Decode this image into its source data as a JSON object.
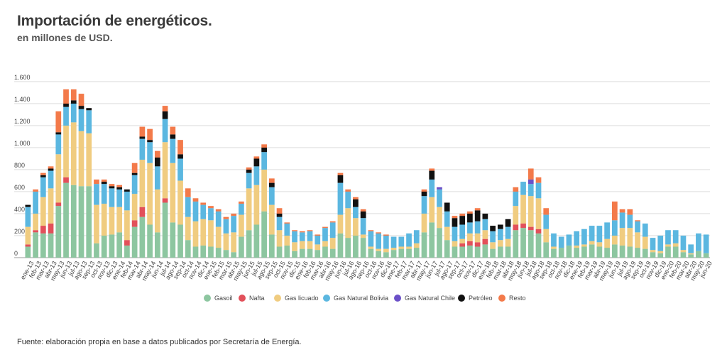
{
  "title": "Importación de energéticos.",
  "subtitle": "en millones de USD.",
  "source": "Fuente: elaboración propia en base a datos publicados por Secretaría de Energía.",
  "chart_data": {
    "type": "bar",
    "stacked": true,
    "title": "Importación de energéticos.",
    "subtitle": "en millones de USD.",
    "ylim": [
      0,
      1600
    ],
    "yticks": [
      0,
      200,
      400,
      600,
      800,
      1000,
      1200,
      1400,
      1600
    ],
    "ytick_labels": [
      "0",
      "200",
      "400",
      "600",
      "800",
      "1.000",
      "1.200",
      "1.400",
      "1.600"
    ],
    "grid": true,
    "legend": "bottom",
    "categories": [
      "ene-13",
      "feb-13",
      "mar-13",
      "abr-13",
      "may-13",
      "jun-13",
      "jul-13",
      "ago-13",
      "sep-13",
      "oct-13",
      "nov-13",
      "dic-13",
      "ene-14",
      "feb-14",
      "mar-14",
      "abr-14",
      "may-14",
      "jun-14",
      "jul-14",
      "ago-14",
      "sep-14",
      "oct-14",
      "nov-14",
      "dic-14",
      "ene-15",
      "feb-15",
      "mar-15",
      "abr-15",
      "may-15",
      "jun-15",
      "jul-15",
      "ago-15",
      "sep-15",
      "oct-15",
      "nov-15",
      "dic-15",
      "ene-16",
      "feb-16",
      "mar-16",
      "abr-16",
      "may-16",
      "jun-16",
      "jul-16",
      "ago-16",
      "sep-16",
      "oct-16",
      "nov-16",
      "dic-16",
      "ene-17",
      "feb-17",
      "mar-17",
      "abr-17",
      "may-17",
      "jun-17",
      "jul-17",
      "ago-17",
      "sep-17",
      "oct-17",
      "nov-17",
      "dic-17",
      "ene-18",
      "feb-18",
      "mar-18",
      "abr-18",
      "may-18",
      "jun-18",
      "jul-18",
      "ago-18",
      "sep-18",
      "oct-18",
      "nov-18",
      "dic-18",
      "ene-19",
      "feb-19",
      "mar-19",
      "abr-19",
      "may-19",
      "jun-19",
      "jul-19",
      "ago-19",
      "sep-19",
      "oct-19",
      "nov-19",
      "dic-19",
      "ene-20",
      "feb-20",
      "mar-20",
      "abr-20",
      "may-20",
      "jun-20"
    ],
    "series": [
      {
        "name": "Gasoil",
        "color": "#8dc6a0",
        "values": [
          100,
          230,
          220,
          220,
          470,
          680,
          660,
          650,
          650,
          130,
          200,
          210,
          230,
          110,
          280,
          370,
          300,
          230,
          500,
          320,
          300,
          160,
          100,
          110,
          100,
          90,
          70,
          50,
          190,
          250,
          300,
          420,
          210,
          100,
          110,
          60,
          80,
          80,
          70,
          100,
          80,
          220,
          180,
          200,
          180,
          80,
          60,
          50,
          70,
          80,
          80,
          90,
          230,
          320,
          270,
          160,
          100,
          100,
          110,
          100,
          120,
          80,
          100,
          100,
          250,
          270,
          250,
          220,
          140,
          80,
          90,
          110,
          90,
          100,
          120,
          100,
          90,
          120,
          110,
          100,
          90,
          80,
          50,
          40,
          100,
          100,
          50,
          30,
          60,
          40
        ]
      },
      {
        "name": "Nafta",
        "color": "#e2505a",
        "values": [
          20,
          20,
          70,
          90,
          30,
          50,
          0,
          0,
          0,
          0,
          0,
          0,
          0,
          50,
          60,
          90,
          0,
          0,
          40,
          0,
          0,
          0,
          0,
          0,
          0,
          0,
          0,
          0,
          0,
          0,
          0,
          0,
          0,
          0,
          0,
          0,
          0,
          0,
          0,
          0,
          0,
          0,
          0,
          0,
          0,
          0,
          0,
          0,
          0,
          0,
          0,
          0,
          0,
          0,
          0,
          0,
          0,
          30,
          40,
          40,
          50,
          0,
          0,
          0,
          50,
          40,
          30,
          40,
          0,
          0,
          0,
          0,
          0,
          0,
          0,
          0,
          0,
          0,
          0,
          0,
          0,
          0,
          0,
          0,
          0,
          0,
          0,
          0,
          0,
          0
        ]
      },
      {
        "name": "Gas licuado",
        "color": "#f0cc80",
        "values": [
          160,
          150,
          260,
          320,
          440,
          470,
          570,
          500,
          480,
          350,
          290,
          250,
          230,
          270,
          240,
          430,
          560,
          390,
          510,
          540,
          400,
          210,
          230,
          240,
          240,
          190,
          150,
          180,
          200,
          380,
          360,
          380,
          270,
          150,
          90,
          80,
          70,
          70,
          50,
          50,
          100,
          170,
          270,
          160,
          30,
          20,
          20,
          30,
          20,
          20,
          20,
          40,
          170,
          230,
          190,
          120,
          50,
          40,
          70,
          80,
          80,
          60,
          60,
          70,
          170,
          260,
          280,
          280,
          120,
          20,
          0,
          0,
          20,
          20,
          30,
          40,
          80,
          80,
          160,
          170,
          140,
          110,
          20,
          20,
          20,
          30,
          20,
          10,
          0,
          0
        ]
      },
      {
        "name": "Gas Natural Bolivia",
        "color": "#5bb7e0",
        "values": [
          180,
          200,
          180,
          160,
          180,
          170,
          170,
          200,
          210,
          190,
          180,
          170,
          160,
          170,
          170,
          190,
          190,
          210,
          210,
          220,
          200,
          180,
          180,
          130,
          110,
          140,
          130,
          150,
          100,
          140,
          170,
          160,
          160,
          120,
          110,
          100,
          80,
          90,
          80,
          120,
          140,
          290,
          150,
          100,
          150,
          140,
          140,
          120,
          100,
          90,
          120,
          120,
          160,
          160,
          160,
          140,
          130,
          130,
          100,
          110,
          100,
          100,
          100,
          110,
          130,
          120,
          110,
          140,
          130,
          120,
          100,
          100,
          130,
          140,
          140,
          150,
          150,
          140,
          140,
          120,
          100,
          120,
          110,
          140,
          130,
          120,
          130,
          80,
          160,
          170
        ]
      },
      {
        "name": "Gas Natural Chile",
        "color": "#6b50c8",
        "values": [
          0,
          0,
          0,
          0,
          0,
          0,
          0,
          0,
          0,
          0,
          0,
          0,
          0,
          0,
          0,
          0,
          0,
          0,
          0,
          0,
          0,
          0,
          0,
          0,
          0,
          0,
          0,
          0,
          0,
          0,
          0,
          0,
          0,
          0,
          0,
          0,
          0,
          0,
          0,
          0,
          0,
          0,
          0,
          0,
          0,
          0,
          0,
          0,
          0,
          0,
          0,
          0,
          0,
          0,
          20,
          0,
          0,
          0,
          0,
          0,
          0,
          0,
          0,
          0,
          0,
          0,
          40,
          0,
          0,
          0,
          0,
          0,
          0,
          0,
          0,
          0,
          0,
          0,
          0,
          0,
          0,
          0,
          0,
          0,
          0,
          0,
          0,
          0,
          0,
          0
        ]
      },
      {
        "name": "Petróleo",
        "color": "#111111",
        "values": [
          20,
          0,
          20,
          20,
          20,
          30,
          30,
          30,
          20,
          0,
          20,
          20,
          20,
          20,
          20,
          20,
          20,
          80,
          70,
          40,
          40,
          0,
          0,
          0,
          0,
          0,
          0,
          0,
          0,
          30,
          70,
          40,
          40,
          30,
          0,
          0,
          0,
          0,
          0,
          0,
          0,
          70,
          0,
          70,
          60,
          0,
          0,
          0,
          0,
          0,
          0,
          0,
          40,
          80,
          0,
          80,
          80,
          80,
          80,
          100,
          50,
          50,
          40,
          70,
          0,
          0,
          0,
          0,
          0,
          0,
          0,
          0,
          0,
          0,
          0,
          0,
          0,
          0,
          0,
          0,
          0,
          0,
          0,
          0,
          0,
          0,
          0,
          0,
          0,
          0
        ]
      },
      {
        "name": "Resto",
        "color": "#f37a4a",
        "values": [
          0,
          20,
          20,
          20,
          190,
          130,
          100,
          110,
          0,
          40,
          20,
          20,
          20,
          0,
          90,
          90,
          100,
          60,
          50,
          70,
          130,
          80,
          30,
          20,
          20,
          20,
          20,
          20,
          20,
          20,
          20,
          30,
          40,
          50,
          10,
          10,
          10,
          10,
          10,
          10,
          10,
          20,
          20,
          20,
          20,
          10,
          10,
          10,
          0,
          0,
          0,
          0,
          20,
          20,
          0,
          0,
          20,
          20,
          20,
          20,
          0,
          0,
          0,
          0,
          40,
          0,
          100,
          50,
          60,
          0,
          0,
          0,
          0,
          0,
          0,
          0,
          0,
          170,
          30,
          50,
          10,
          0,
          0,
          0,
          0,
          0,
          0,
          0,
          0,
          0
        ]
      }
    ]
  }
}
